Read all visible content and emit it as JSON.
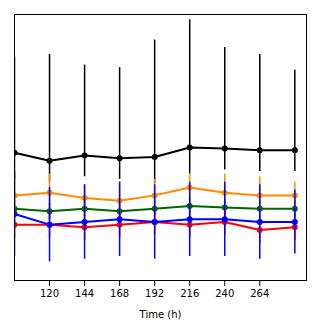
{
  "chart_data": {
    "type": "line",
    "x": [
      96,
      120,
      144,
      168,
      192,
      216,
      240,
      264,
      288
    ],
    "series": [
      {
        "color": "#000000",
        "values": [
          2.0,
          0.5,
          1.5,
          1.0,
          1.2,
          3.0,
          2.8,
          2.5,
          2.5
        ],
        "yerr_upper": [
          18,
          20,
          17,
          17,
          22,
          24,
          19,
          18,
          15
        ],
        "yerr_lower": [
          5,
          4,
          4,
          4,
          5,
          5,
          4,
          4,
          4
        ]
      },
      {
        "color": "#006400",
        "values": [
          -8.5,
          -9.0,
          -8.5,
          -9.0,
          -8.5,
          -8.0,
          -8.3,
          -8.5,
          -8.5
        ],
        "yerr_upper": [
          1.5,
          1.5,
          1.5,
          1.5,
          1.5,
          1.5,
          1.5,
          1.5,
          1.5
        ],
        "yerr_lower": [
          1.5,
          1.5,
          1.5,
          1.5,
          1.5,
          1.5,
          1.5,
          1.5,
          1.5
        ]
      },
      {
        "color": "#FF8C00",
        "values": [
          -6.0,
          -5.5,
          -6.5,
          -7.0,
          -6.0,
          -4.5,
          -5.5,
          -6.0,
          -6.0
        ],
        "yerr_upper": [
          3.5,
          3.5,
          2.5,
          3.5,
          3.0,
          2.5,
          3.5,
          3.5,
          2.5
        ],
        "yerr_lower": [
          3.5,
          3.5,
          2.5,
          3.5,
          3.0,
          2.5,
          3.5,
          3.5,
          2.5
        ]
      },
      {
        "color": "#FF0000",
        "values": [
          -11.5,
          -11.5,
          -12.0,
          -11.5,
          -11.0,
          -11.5,
          -11.0,
          -12.5,
          -12.0
        ],
        "yerr_upper": [
          2.5,
          2.5,
          2.5,
          2.5,
          2.5,
          2.5,
          2.5,
          2.5,
          2.5
        ],
        "yerr_lower": [
          2.5,
          2.5,
          2.5,
          2.5,
          2.5,
          2.5,
          2.5,
          2.5,
          2.5
        ]
      },
      {
        "color": "#0000FF",
        "values": [
          -9.5,
          -11.5,
          -11.0,
          -10.5,
          -11.0,
          -10.5,
          -10.5,
          -11.0,
          -11.0
        ],
        "yerr_upper": [
          8,
          7,
          7,
          7,
          7,
          7,
          7,
          7,
          6
        ],
        "yerr_lower": [
          8,
          7,
          7,
          7,
          7,
          7,
          7,
          7,
          6
        ]
      }
    ],
    "xlabel": "Time (h)",
    "xlim": [
      96,
      296
    ],
    "ylim": [
      -22,
      28
    ],
    "xticks": [
      120,
      144,
      168,
      192,
      216,
      240,
      264
    ],
    "marker": "o",
    "tick_labels": "x",
    "grid": false
  }
}
